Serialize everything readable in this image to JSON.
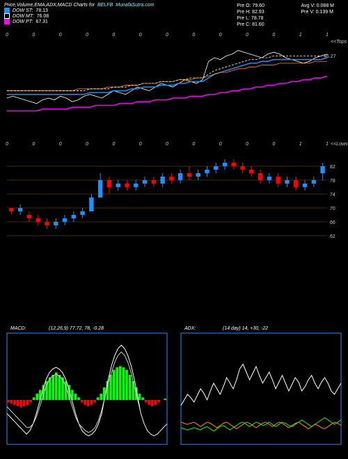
{
  "header": {
    "title_prefix": "Price,Volume,EMA,ADX,MACD Charts for",
    "ticker": "BELFB",
    "source": "MunafaSutra.com",
    "dow_st_label": "DOW ST:",
    "dow_st_val": "78.13",
    "dow_mt_label": "DOW MT:",
    "dow_mt_val": "76.08",
    "dow_pt_label": "DOW PT:",
    "dow_pt_val": "67.31"
  },
  "stats": {
    "o_label": "Pre   O:",
    "o_val": "79.60",
    "h_label": "Pre   H:",
    "h_val": "82.93",
    "l_label": "Pre   L:",
    "l_val": "78.78",
    "c_label": "Pre   C:",
    "c_val": "81.60",
    "avgv_label": "Avg V:",
    "avgv_val": "0.088 M",
    "prev_label": "Pre  V:",
    "prev_val": "0.139 M"
  },
  "price_chart": {
    "last_label": "46.27",
    "side_top": "<<Tops",
    "side_low": "<<Lows",
    "line_white": [
      22,
      23,
      22,
      21,
      20,
      19,
      21,
      22,
      21,
      23,
      22,
      20,
      21,
      23,
      24,
      23,
      22,
      24,
      26,
      25,
      24,
      26,
      28,
      27,
      26,
      28,
      30,
      29,
      28,
      30,
      32,
      31,
      30,
      32,
      42,
      44,
      43,
      45,
      46,
      48,
      47,
      46,
      45,
      44,
      46,
      47,
      46,
      44,
      43,
      42,
      41,
      42,
      44,
      45,
      46
    ],
    "line_blue_ema": [
      24,
      24,
      24,
      24,
      24,
      24,
      24,
      24,
      24,
      24,
      24,
      24,
      24,
      24,
      25,
      25,
      25,
      25,
      26,
      26,
      26,
      27,
      27,
      28,
      28,
      28,
      29,
      29,
      29,
      30,
      30,
      31,
      31,
      31,
      33,
      35,
      36,
      37,
      38,
      39,
      40,
      41,
      41,
      42,
      42,
      43,
      43,
      43,
      43,
      43,
      43,
      43,
      43,
      43,
      44
    ],
    "line_orange": [
      26,
      26,
      26,
      26,
      26,
      26,
      26,
      26,
      26,
      26,
      26,
      26,
      27,
      27,
      27,
      27,
      27,
      28,
      28,
      28,
      29,
      29,
      29,
      30,
      30,
      30,
      31,
      31,
      31,
      32,
      32,
      32,
      33,
      33,
      34,
      35,
      36,
      36,
      37,
      38,
      38,
      39,
      39,
      40,
      40,
      40,
      41,
      41,
      41,
      41,
      41,
      41,
      42,
      42,
      42
    ],
    "line_magenta": [
      15,
      15,
      15,
      15,
      15,
      15,
      16,
      16,
      16,
      16,
      16,
      17,
      17,
      17,
      17,
      18,
      18,
      18,
      18,
      19,
      19,
      19,
      20,
      20,
      20,
      21,
      21,
      21,
      22,
      22,
      22,
      23,
      23,
      23,
      24,
      24,
      25,
      25,
      26,
      26,
      27,
      27,
      28,
      28,
      29,
      29,
      30,
      30,
      31,
      31,
      32,
      32,
      33,
      33,
      34
    ],
    "colors": {
      "white": "#ffffff",
      "blue": "#1e90ff",
      "orange": "#ff8c00",
      "magenta": "#ff00ff"
    }
  },
  "candle_chart": {
    "y_ticks": [
      62,
      66,
      70,
      74,
      78,
      82
    ],
    "gridline_color": "#8b5a00",
    "candles": [
      {
        "o": 70,
        "c": 69,
        "h": 70,
        "l": 68
      },
      {
        "o": 69,
        "c": 70,
        "h": 71,
        "l": 68
      },
      {
        "o": 68,
        "c": 67,
        "h": 69,
        "l": 66
      },
      {
        "o": 67,
        "c": 66,
        "h": 68,
        "l": 65
      },
      {
        "o": 66,
        "c": 65,
        "h": 67,
        "l": 64
      },
      {
        "o": 65,
        "c": 66,
        "h": 67,
        "l": 64
      },
      {
        "o": 66,
        "c": 67,
        "h": 68,
        "l": 65
      },
      {
        "o": 67,
        "c": 68,
        "h": 69,
        "l": 66
      },
      {
        "o": 68,
        "c": 69,
        "h": 70,
        "l": 67
      },
      {
        "o": 69,
        "c": 73,
        "h": 74,
        "l": 69
      },
      {
        "o": 73,
        "c": 78,
        "h": 80,
        "l": 73
      },
      {
        "o": 78,
        "c": 76,
        "h": 79,
        "l": 74
      },
      {
        "o": 76,
        "c": 77,
        "h": 78,
        "l": 75
      },
      {
        "o": 77,
        "c": 76,
        "h": 78,
        "l": 75
      },
      {
        "o": 76,
        "c": 77,
        "h": 78,
        "l": 75
      },
      {
        "o": 77,
        "c": 78,
        "h": 79,
        "l": 76
      },
      {
        "o": 78,
        "c": 77,
        "h": 79,
        "l": 76
      },
      {
        "o": 77,
        "c": 79,
        "h": 80,
        "l": 76
      },
      {
        "o": 79,
        "c": 78,
        "h": 80,
        "l": 77
      },
      {
        "o": 78,
        "c": 80,
        "h": 81,
        "l": 77
      },
      {
        "o": 80,
        "c": 79,
        "h": 82,
        "l": 78
      },
      {
        "o": 79,
        "c": 80,
        "h": 81,
        "l": 78
      },
      {
        "o": 80,
        "c": 81,
        "h": 82,
        "l": 79
      },
      {
        "o": 81,
        "c": 82,
        "h": 83,
        "l": 80
      },
      {
        "o": 82,
        "c": 83,
        "h": 84,
        "l": 81
      },
      {
        "o": 83,
        "c": 82,
        "h": 84,
        "l": 81
      },
      {
        "o": 82,
        "c": 81,
        "h": 83,
        "l": 80
      },
      {
        "o": 81,
        "c": 80,
        "h": 82,
        "l": 79
      },
      {
        "o": 80,
        "c": 78,
        "h": 81,
        "l": 77
      },
      {
        "o": 78,
        "c": 79,
        "h": 80,
        "l": 77
      },
      {
        "o": 79,
        "c": 77,
        "h": 80,
        "l": 76
      },
      {
        "o": 77,
        "c": 78,
        "h": 79,
        "l": 76
      },
      {
        "o": 78,
        "c": 76,
        "h": 79,
        "l": 75
      },
      {
        "o": 76,
        "c": 77,
        "h": 78,
        "l": 75
      },
      {
        "o": 77,
        "c": 78,
        "h": 79,
        "l": 76
      },
      {
        "o": 80,
        "c": 82,
        "h": 83,
        "l": 78
      }
    ]
  },
  "macd": {
    "title": "MACD:",
    "params": "(12,26,9) 77.72, 78, -0.28",
    "hist_color_pos": "#00ff00",
    "hist_color_neg": "#ff0000",
    "hist": [
      -2,
      -3,
      -4,
      -5,
      -6,
      -5,
      -4,
      -2,
      2,
      5,
      8,
      12,
      15,
      18,
      20,
      22,
      20,
      18,
      15,
      12,
      8,
      5,
      2,
      -2,
      -4,
      -5,
      -4,
      -2,
      2,
      5,
      10,
      15,
      20,
      24,
      26,
      27,
      26,
      24,
      20,
      15,
      10,
      5,
      2,
      -2,
      -4,
      -5,
      -4,
      -2,
      0,
      1
    ],
    "line1": [
      48,
      46,
      44,
      42,
      40,
      38,
      36,
      38,
      42,
      48,
      55,
      62,
      68,
      72,
      74,
      75,
      74,
      72,
      68,
      62,
      55,
      48,
      42,
      38,
      36,
      35,
      36,
      38,
      42,
      48,
      58,
      68,
      76,
      82,
      86,
      88,
      86,
      82,
      76,
      68,
      58,
      48,
      42,
      38,
      36,
      35,
      36,
      38,
      40,
      42
    ],
    "line2": [
      52,
      50,
      48,
      46,
      44,
      42,
      40,
      40,
      42,
      46,
      52,
      58,
      64,
      68,
      70,
      71,
      70,
      68,
      64,
      58,
      52,
      46,
      42,
      40,
      38,
      37,
      38,
      40,
      44,
      50,
      58,
      66,
      72,
      78,
      82,
      84,
      82,
      78,
      72,
      64,
      56,
      48,
      42,
      38,
      36,
      35,
      36,
      38,
      40,
      42
    ]
  },
  "adx": {
    "title": "ADX:",
    "params": "(14   day) 14,  +30,  -22",
    "line_white": [
      35,
      40,
      45,
      42,
      38,
      44,
      50,
      46,
      40,
      48,
      55,
      50,
      45,
      52,
      60,
      55,
      50,
      58,
      68,
      72,
      65,
      58,
      64,
      70,
      62,
      55,
      60,
      65,
      58,
      50,
      56,
      62,
      55,
      48,
      54,
      60,
      56,
      48,
      52,
      58,
      62,
      55,
      50,
      56,
      60,
      55,
      48,
      45,
      50,
      55
    ],
    "line_green": [
      15,
      14,
      13,
      14,
      15,
      14,
      13,
      15,
      16,
      14,
      12,
      14,
      16,
      17,
      15,
      13,
      15,
      17,
      19,
      20,
      18,
      16,
      18,
      20,
      19,
      17,
      18,
      20,
      18,
      16,
      18,
      20,
      19,
      17,
      16,
      18,
      20,
      22,
      20,
      18,
      16,
      18,
      20,
      22,
      24,
      22,
      20,
      18,
      20,
      22
    ],
    "line_orange": [
      20,
      19,
      18,
      19,
      20,
      18,
      16,
      18,
      20,
      19,
      17,
      15,
      17,
      19,
      20,
      18,
      16,
      14,
      16,
      18,
      20,
      19,
      17,
      15,
      17,
      19,
      20,
      18,
      16,
      18,
      20,
      19,
      17,
      15,
      17,
      19,
      20,
      18,
      16,
      14,
      16,
      18,
      17,
      15,
      14,
      16,
      18,
      20,
      19,
      17
    ]
  },
  "colors": {
    "bg": "#000000",
    "text": "#ffffff",
    "legend_blue": "#1e90ff",
    "legend_white": "#ffffff",
    "legend_magenta": "#ff00ff",
    "candle_up": "#1e90ff",
    "candle_down": "#ff0000",
    "grid": "#8b5a00",
    "box": "#1e90ff"
  },
  "axis_tick_labels": [
    "0",
    "0",
    "0",
    "0",
    "0",
    "0",
    "0",
    "0",
    "0",
    "0",
    "0",
    "1",
    "1"
  ]
}
